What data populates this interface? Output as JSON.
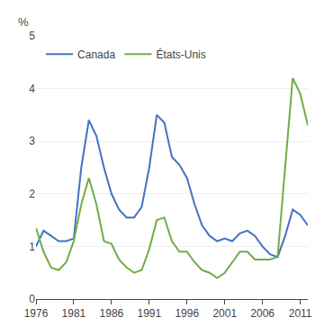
{
  "chart_data": {
    "type": "line",
    "ylabel": "%",
    "x": [
      1976,
      1977,
      1978,
      1979,
      1980,
      1981,
      1982,
      1983,
      1984,
      1985,
      1986,
      1987,
      1988,
      1989,
      1990,
      1991,
      1992,
      1993,
      1994,
      1995,
      1996,
      1997,
      1998,
      1999,
      2000,
      2001,
      2002,
      2003,
      2004,
      2005,
      2006,
      2007,
      2008,
      2009,
      2010,
      2011,
      2012
    ],
    "series": [
      {
        "name": "Canada",
        "color": "#4472C4",
        "values": [
          1.0,
          1.3,
          1.2,
          1.1,
          1.1,
          1.15,
          2.5,
          3.4,
          3.1,
          2.5,
          2.0,
          1.7,
          1.55,
          1.55,
          1.75,
          2.5,
          3.5,
          3.35,
          2.7,
          2.55,
          2.3,
          1.8,
          1.4,
          1.2,
          1.1,
          1.15,
          1.1,
          1.25,
          1.3,
          1.2,
          1.0,
          0.85,
          0.8,
          1.2,
          1.7,
          1.6,
          1.4
        ]
      },
      {
        "name": "États-Unis",
        "color": "#70AD47",
        "values": [
          1.35,
          0.9,
          0.6,
          0.55,
          0.7,
          1.1,
          1.8,
          2.3,
          1.8,
          1.1,
          1.05,
          0.75,
          0.6,
          0.5,
          0.55,
          0.95,
          1.5,
          1.55,
          1.1,
          0.9,
          0.9,
          0.7,
          0.55,
          0.5,
          0.4,
          0.5,
          0.7,
          0.9,
          0.9,
          0.75,
          0.75,
          0.75,
          0.8,
          2.5,
          4.2,
          3.9,
          3.3
        ]
      }
    ],
    "xlim": [
      1976,
      2012
    ],
    "ylim": [
      0,
      5
    ],
    "xticks": [
      1976,
      1981,
      1986,
      1991,
      1996,
      2001,
      2006,
      2011
    ],
    "yticks": [
      0,
      1,
      2,
      3,
      4,
      5
    ],
    "grid": "y",
    "legend": "upper left"
  }
}
